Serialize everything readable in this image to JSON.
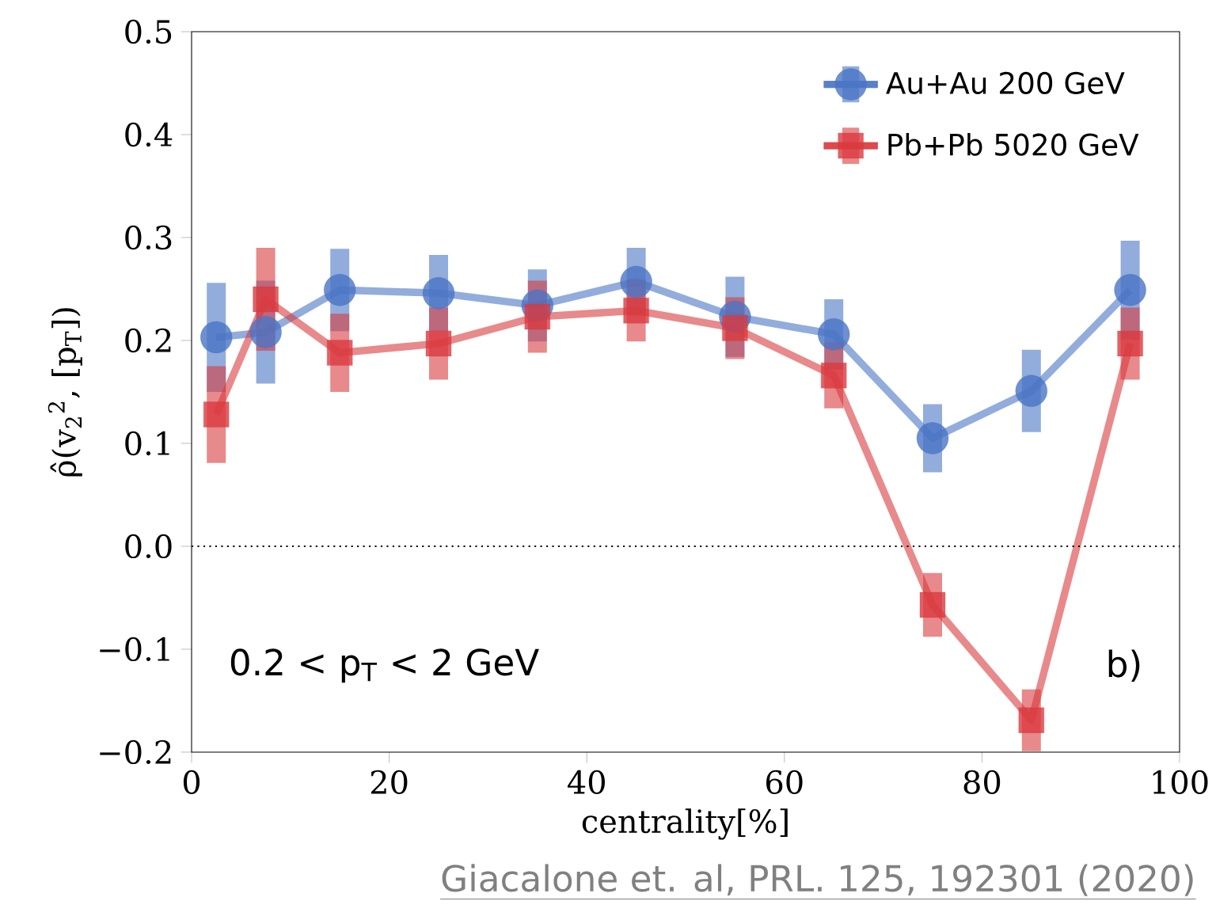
{
  "chart_data": {
    "type": "line",
    "xlabel": "centrality[%]",
    "ylabel": "ρ̂(v$_{2}$$^{2}$, [p$_{T}$])",
    "x": [
      2.5,
      7.5,
      15,
      25,
      35,
      45,
      55,
      65,
      75,
      85,
      95
    ],
    "series": [
      {
        "name": "Au+Au 200 GeV",
        "color": "#4a74c4",
        "marker": "circle",
        "values": [
          0.203,
          0.208,
          0.249,
          0.246,
          0.234,
          0.257,
          0.223,
          0.206,
          0.105,
          0.151,
          0.249
        ],
        "errors": [
          0.053,
          0.05,
          0.04,
          0.037,
          0.035,
          0.033,
          0.039,
          0.034,
          0.033,
          0.04,
          0.048
        ]
      },
      {
        "name": "Pb+Pb 5020 GeV",
        "color": "#d93a3e",
        "marker": "square",
        "values": [
          0.128,
          0.24,
          0.188,
          0.197,
          0.223,
          0.229,
          0.212,
          0.166,
          -0.057,
          -0.169,
          0.197
        ],
        "errors": [
          0.047,
          0.05,
          0.038,
          0.035,
          0.035,
          0.03,
          0.03,
          0.032,
          0.031,
          0.03,
          0.035
        ]
      }
    ],
    "xlim": [
      0,
      100
    ],
    "ylim": [
      -0.2,
      0.5
    ],
    "xticks": [
      0,
      20,
      40,
      60,
      80,
      100
    ],
    "yticks": [
      {
        "value": -0.2,
        "label": "−0.2"
      },
      {
        "value": -0.1,
        "label": "−0.1"
      },
      {
        "value": 0,
        "label": "0.0"
      },
      0.1,
      0.2,
      0.3,
      0.4,
      0.5
    ],
    "ref_lines": [
      {
        "axis": "y",
        "value": 0,
        "color": "#000000",
        "line_style": "dotted"
      }
    ],
    "legend": "top right",
    "grid": false,
    "line_style": "solid",
    "annotations": [
      "0.2 < p$_{T}$ < 2 GeV",
      "b)",
      "Giacalone et. al, PRL. 125, 192301 (2020)"
    ]
  }
}
